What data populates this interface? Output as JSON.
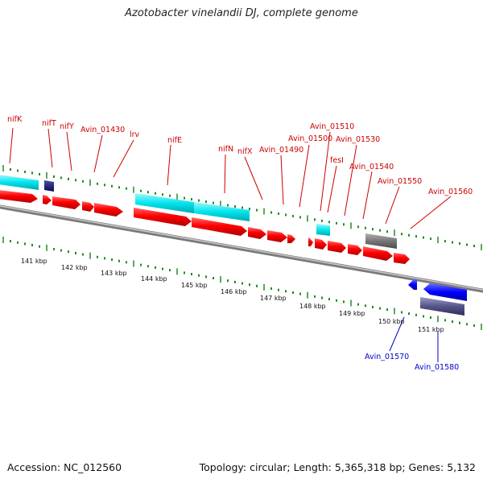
{
  "title": "Azotobacter vinelandii DJ, complete genome",
  "accession": "Accession: NC_012560",
  "topology": "Topology: circular; Length: 5,365,318 bp; Genes: 5,132",
  "scale_labels": [
    "141 kbp",
    "142 kbp",
    "143 kbp",
    "144 kbp",
    "145 kbp",
    "146 kbp",
    "147 kbp",
    "148 kbp",
    "149 kbp",
    "150 kbp",
    "151 kbp"
  ],
  "forward_gene_labels": [
    "nifK",
    "nifT",
    "nifY",
    "Avin_01430",
    "lrv",
    "nifE",
    "nifN",
    "nifX",
    "Avin_01490",
    "Avin_01500",
    "Avin_01510",
    "fesI",
    "Avin_01530",
    "Avin_01540",
    "Avin_01550",
    "Avin_01560"
  ],
  "reverse_gene_labels": [
    "Avin_01570",
    "Avin_01580"
  ],
  "colors": {
    "forward_label": "#cc0000",
    "reverse_label": "#0000cc",
    "cds_forward": "#ff0000",
    "cds_reverse": "#0000ff",
    "gene_bar": "#00e5ee",
    "pseudo_bar": "#777777",
    "tick": "#228b22",
    "backbone": "#8a8a8a"
  }
}
